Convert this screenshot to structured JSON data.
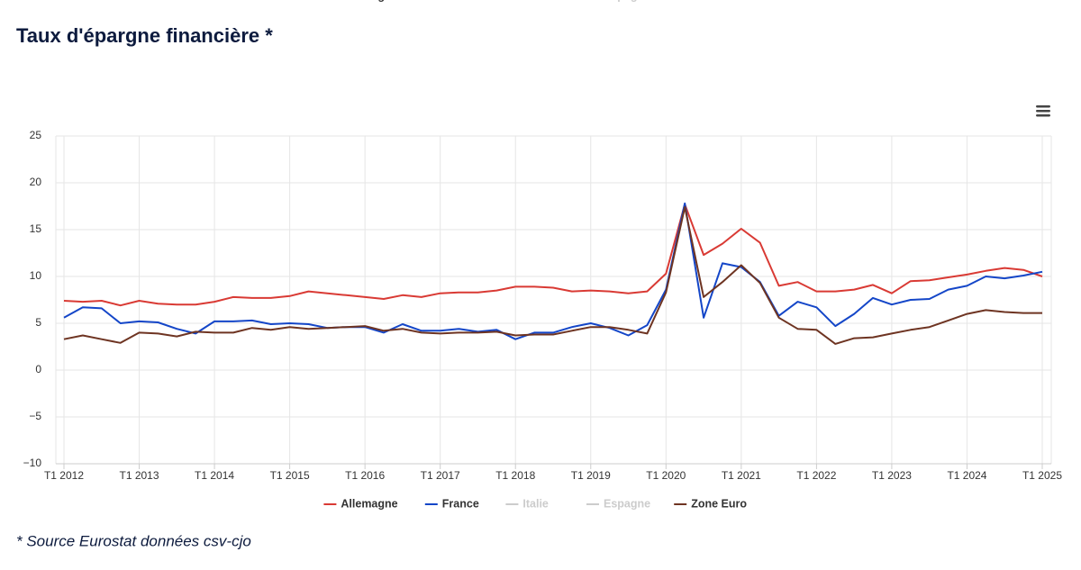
{
  "chart_data": {
    "type": "line",
    "title": "Taux d'épargne financière *",
    "footnote": "* Source Eurostat données csv-cjo",
    "categories": [
      "T1 2012",
      null,
      null,
      null,
      "T1 2013",
      null,
      null,
      null,
      "T1 2014",
      null,
      null,
      null,
      "T1 2015",
      null,
      null,
      null,
      "T1 2016",
      null,
      null,
      null,
      "T1 2017",
      null,
      null,
      null,
      "T1 2018",
      null,
      null,
      null,
      "T1 2019",
      null,
      null,
      null,
      "T1 2020",
      null,
      null,
      null,
      "T1 2021",
      null,
      null,
      null,
      "T1 2022",
      null,
      null,
      null,
      "T1 2023",
      null,
      null,
      null,
      "T1 2024",
      null,
      null,
      null,
      "T1 2025"
    ],
    "ylim": [
      -10,
      25
    ],
    "yticks": [
      {
        "value": -10,
        "label": "−10"
      },
      {
        "value": -5,
        "label": "−5"
      },
      0,
      5,
      10,
      15,
      20,
      25
    ],
    "grid": true,
    "legend": "bottom",
    "series": [
      {
        "name": "Allemagne",
        "color": "#d93a34",
        "visible": true,
        "values": [
          7.4,
          7.3,
          7.4,
          6.9,
          7.4,
          7.1,
          7.0,
          7.0,
          7.3,
          7.8,
          7.7,
          7.7,
          7.9,
          8.4,
          8.2,
          8.0,
          7.8,
          7.6,
          8.0,
          7.8,
          8.2,
          8.3,
          8.3,
          8.5,
          8.9,
          8.9,
          8.8,
          8.4,
          8.5,
          8.4,
          8.2,
          8.4,
          10.3,
          17.7,
          12.3,
          13.5,
          15.1,
          13.6,
          9.0,
          9.4,
          8.4,
          8.4,
          8.6,
          9.1,
          8.2,
          9.5,
          9.6,
          9.9,
          10.2,
          10.6,
          10.9,
          10.7,
          10.0
        ]
      },
      {
        "name": "France",
        "color": "#1446c8",
        "visible": true,
        "values": [
          5.6,
          6.7,
          6.6,
          5.0,
          5.2,
          5.1,
          4.4,
          3.9,
          5.2,
          5.2,
          5.3,
          4.9,
          5.0,
          4.9,
          4.5,
          4.6,
          4.6,
          4.0,
          4.9,
          4.2,
          4.2,
          4.4,
          4.1,
          4.3,
          3.3,
          4.0,
          4.0,
          4.6,
          5.0,
          4.5,
          3.7,
          4.8,
          8.6,
          17.8,
          5.6,
          11.4,
          11.0,
          9.4,
          5.8,
          7.3,
          6.7,
          4.7,
          6.0,
          7.7,
          7.0,
          7.5,
          7.6,
          8.6,
          9.0,
          10.0,
          9.8,
          10.1,
          10.5
        ]
      },
      {
        "name": "Italie",
        "color": "#cccccc",
        "visible": false
      },
      {
        "name": "Espagne",
        "color": "#cccccc",
        "visible": false
      },
      {
        "name": "Zone Euro",
        "color": "#6e3422",
        "visible": true,
        "values": [
          3.3,
          3.7,
          3.3,
          2.9,
          4.0,
          3.9,
          3.6,
          4.1,
          4.0,
          4.0,
          4.5,
          4.3,
          4.6,
          4.4,
          4.5,
          4.6,
          4.7,
          4.2,
          4.4,
          4.0,
          3.9,
          4.0,
          4.0,
          4.1,
          3.7,
          3.8,
          3.8,
          4.2,
          4.6,
          4.6,
          4.3,
          3.9,
          8.3,
          17.4,
          7.8,
          9.4,
          11.2,
          9.3,
          5.6,
          4.4,
          4.3,
          2.8,
          3.4,
          3.5,
          3.9,
          4.3,
          4.6,
          5.3,
          6.0,
          6.4,
          6.2,
          6.1,
          6.1
        ]
      }
    ]
  }
}
